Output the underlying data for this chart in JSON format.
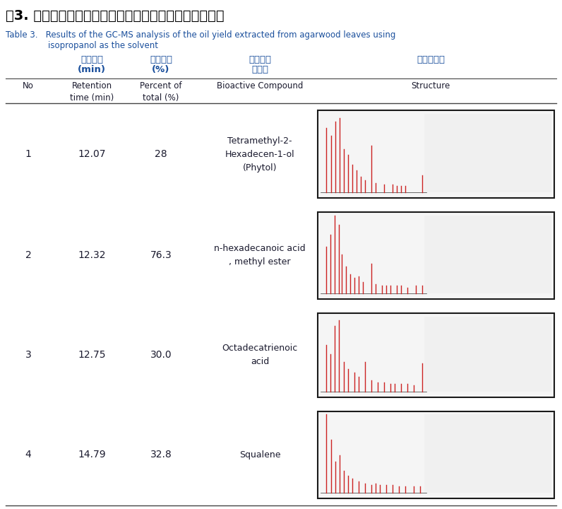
{
  "title_chinese": "表3. 沉香葉油使用氣相色譜質譜儀分析生物活性成分結果",
  "title_english_1": "Table 3.   Results of the GC-MS analysis of the oil yield extracted from agarwood leaves using",
  "title_english_2": "isopropanol as the solvent",
  "header_zh_1": "滯留時間",
  "header_zh_1b": "(min)",
  "header_zh_2": "總百分比",
  "header_zh_2b": "(%)",
  "header_zh_3": "生物活性",
  "header_zh_3b": "化合物",
  "header_zh_4": "化合物結構",
  "header_en_no": "No",
  "header_en_1": "Retention\ntime (min)",
  "header_en_2": "Percent of\ntotal (%)",
  "header_en_3": "Bioactive Compound",
  "header_en_4": "Structure",
  "rows": [
    {
      "no": "1",
      "retention": "12.07",
      "percent": "28",
      "compound": "Tetramethyl-2-\nHexadecen-1-ol\n(Phytol)"
    },
    {
      "no": "2",
      "retention": "12.32",
      "percent": "76.3",
      "compound": "n-hexadecanoic acid\n, methyl ester"
    },
    {
      "no": "3",
      "retention": "12.75",
      "percent": "30.0",
      "compound": "Octadecatrienoic\nacid"
    },
    {
      "no": "4",
      "retention": "14.79",
      "percent": "32.8",
      "compound": "Squalene"
    }
  ],
  "bg_color": "#ffffff",
  "header_zh_color": "#1a4f9c",
  "text_color": "#1a1a2e",
  "title_zh_color": "#000000",
  "title_en_color": "#1a4f9c",
  "line_color": "#444444",
  "img_border_color": "#1a1a1a",
  "peaks": [
    [
      [
        0.05,
        0.82
      ],
      [
        0.1,
        0.72
      ],
      [
        0.14,
        0.9
      ],
      [
        0.18,
        0.95
      ],
      [
        0.22,
        0.55
      ],
      [
        0.26,
        0.48
      ],
      [
        0.3,
        0.35
      ],
      [
        0.34,
        0.28
      ],
      [
        0.38,
        0.2
      ],
      [
        0.42,
        0.15
      ],
      [
        0.48,
        0.6
      ],
      [
        0.52,
        0.12
      ],
      [
        0.6,
        0.1
      ],
      [
        0.68,
        0.1
      ],
      [
        0.72,
        0.08
      ],
      [
        0.76,
        0.08
      ],
      [
        0.8,
        0.08
      ],
      [
        0.96,
        0.22
      ]
    ],
    [
      [
        0.05,
        0.6
      ],
      [
        0.09,
        0.75
      ],
      [
        0.13,
        1.0
      ],
      [
        0.17,
        0.88
      ],
      [
        0.2,
        0.5
      ],
      [
        0.24,
        0.35
      ],
      [
        0.28,
        0.25
      ],
      [
        0.32,
        0.2
      ],
      [
        0.36,
        0.22
      ],
      [
        0.4,
        0.15
      ],
      [
        0.48,
        0.38
      ],
      [
        0.52,
        0.12
      ],
      [
        0.58,
        0.1
      ],
      [
        0.62,
        0.1
      ],
      [
        0.66,
        0.1
      ],
      [
        0.72,
        0.1
      ],
      [
        0.76,
        0.1
      ],
      [
        0.82,
        0.08
      ],
      [
        0.9,
        0.1
      ],
      [
        0.96,
        0.1
      ]
    ],
    [
      [
        0.05,
        0.62
      ],
      [
        0.09,
        0.5
      ],
      [
        0.13,
        0.88
      ],
      [
        0.17,
        0.95
      ],
      [
        0.22,
        0.4
      ],
      [
        0.26,
        0.3
      ],
      [
        0.32,
        0.25
      ],
      [
        0.36,
        0.2
      ],
      [
        0.42,
        0.4
      ],
      [
        0.48,
        0.15
      ],
      [
        0.54,
        0.12
      ],
      [
        0.6,
        0.12
      ],
      [
        0.66,
        0.1
      ],
      [
        0.7,
        0.1
      ],
      [
        0.76,
        0.1
      ],
      [
        0.82,
        0.1
      ],
      [
        0.88,
        0.08
      ],
      [
        0.96,
        0.38
      ]
    ],
    [
      [
        0.05,
        1.0
      ],
      [
        0.1,
        0.68
      ],
      [
        0.14,
        0.4
      ],
      [
        0.18,
        0.48
      ],
      [
        0.22,
        0.28
      ],
      [
        0.26,
        0.22
      ],
      [
        0.3,
        0.18
      ],
      [
        0.36,
        0.15
      ],
      [
        0.42,
        0.12
      ],
      [
        0.48,
        0.1
      ],
      [
        0.52,
        0.12
      ],
      [
        0.56,
        0.1
      ],
      [
        0.62,
        0.1
      ],
      [
        0.68,
        0.1
      ],
      [
        0.74,
        0.08
      ],
      [
        0.8,
        0.08
      ],
      [
        0.88,
        0.08
      ],
      [
        0.94,
        0.08
      ]
    ]
  ]
}
